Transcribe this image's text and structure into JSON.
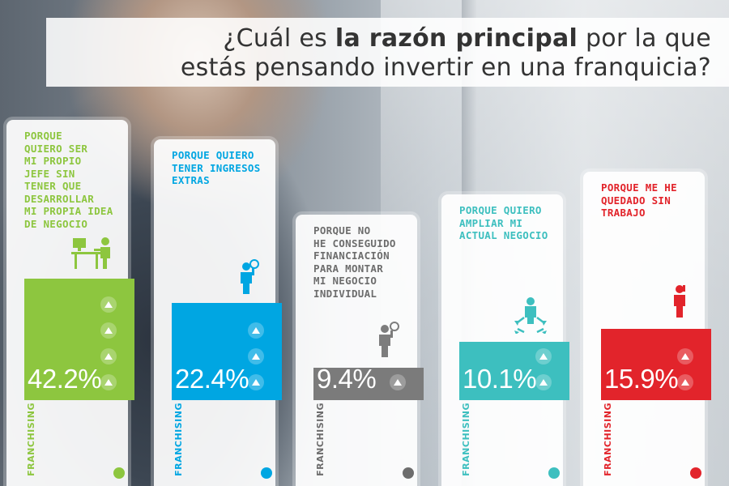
{
  "header": {
    "part1": "¿Cuál es ",
    "bold": "la razón principal",
    "part2": " por la que",
    "line2": "estás pensando invertir en una franquicia?"
  },
  "chart_data": {
    "type": "bar",
    "categories": [
      "PORQUE QUIERO SER MI PROPIO JEFE SIN TENER QUE DESARROLLAR MI PROPIA IDEA DE NEGOCIO",
      "PORQUE QUIERO TENER INGRESOS EXTRAS",
      "PORQUE NO HE CONSEGUIDO FINANCIACIÓN PARA MONTAR MI NEGOCIO INDIVIDUAL",
      "PORQUE QUIERO AMPLIAR MI ACTUAL NEGOCIO",
      "PORQUE ME HE QUEDADO SIN TRABAJO"
    ],
    "values": [
      42.2,
      22.4,
      9.4,
      10.1,
      15.9
    ],
    "data_labels": [
      "42.2%",
      "22.4%",
      "9.4%",
      "10.1%",
      "15.9%"
    ],
    "colors": [
      "#8dc63f",
      "#00a6e2",
      "#7d7d7d",
      "#3dbfbf",
      "#e2242b"
    ]
  },
  "cards": [
    {
      "lines": [
        "PORQUE",
        "QUIERO SER",
        "MI PROPIO",
        "JEFE SIN",
        "TENER QUE",
        "DESARROLLAR",
        "MI PROPIA IDEA",
        "DE NEGOCIO"
      ],
      "pct": "42.2%",
      "markers": 4,
      "brand": "FRANCHISING",
      "color": "#8dc63f",
      "band_color": "#8dc63f",
      "icon": "person-at-desk-icon"
    },
    {
      "lines": [
        "PORQUE QUIERO",
        "TENER INGRESOS",
        "EXTRAS"
      ],
      "pct": "22.4%",
      "markers": 3,
      "brand": "FRANCHISING",
      "color": "#00a6e2",
      "band_color": "#00a6e2",
      "icon": "person-with-coin-icon"
    },
    {
      "lines": [
        "PORQUE NO",
        "HE CONSEGUIDO",
        "FINANCIACIÓN",
        "PARA MONTAR",
        "MI NEGOCIO",
        "INDIVIDUAL"
      ],
      "pct": "9.4%",
      "markers": 1,
      "brand": "FRANCHISING",
      "color": "#6d6d6d",
      "band_color": "#7b7b7b",
      "icon": "person-lightbulb-icon"
    },
    {
      "lines": [
        "PORQUE QUIERO",
        "AMPLIAR MI",
        "ACTUAL NEGOCIO"
      ],
      "pct": "10.1%",
      "markers": 2,
      "brand": "FRANCHISING",
      "color": "#3dbfbf",
      "band_color": "#3dbfbf",
      "icon": "person-expanding-icon"
    },
    {
      "lines": [
        "PORQUE ME HE",
        "QUEDADO SIN",
        "TRABAJO"
      ],
      "pct": "15.9%",
      "markers": 2,
      "brand": "FRANCHISING",
      "color": "#e2242b",
      "band_color": "#e2242b",
      "icon": "person-on-phone-icon"
    }
  ]
}
